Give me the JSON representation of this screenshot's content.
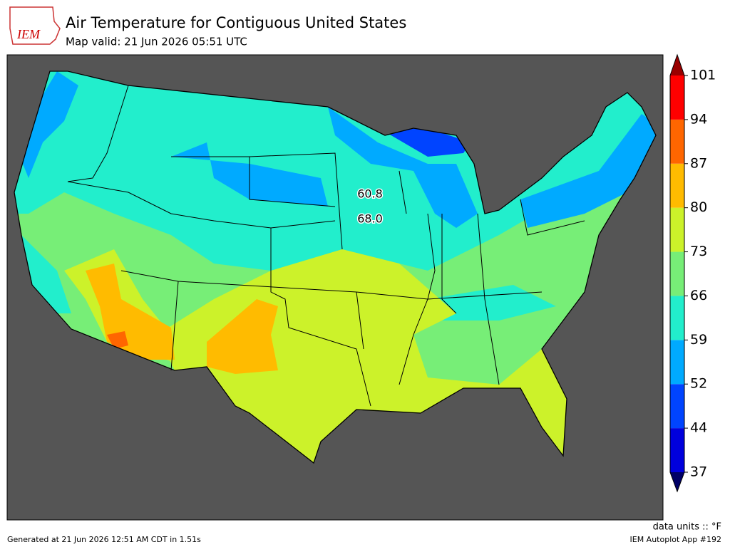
{
  "header": {
    "logo": "IEM",
    "title": "Air Temperature for Contiguous United States",
    "subtitle": "Map valid: 21 Jun 2026 05:51 UTC"
  },
  "map": {
    "labels": [
      "60.8",
      "68.0"
    ]
  },
  "colorbar": {
    "ticks": [
      37,
      44,
      52,
      59,
      66,
      73,
      80,
      87,
      94,
      101
    ],
    "colors": [
      "#0000dd",
      "#0044ff",
      "#00aaff",
      "#22eecc",
      "#77ee77",
      "#ccf22a",
      "#ffbb00",
      "#ff6600",
      "#ff0000"
    ],
    "under_color": "#000066",
    "over_color": "#990000",
    "units": "data units :: °F"
  },
  "footer": {
    "generated": "Generated at 21 Jun 2026 12:51 AM CDT in 1.51s",
    "app": "IEM Autoplot App #192"
  }
}
